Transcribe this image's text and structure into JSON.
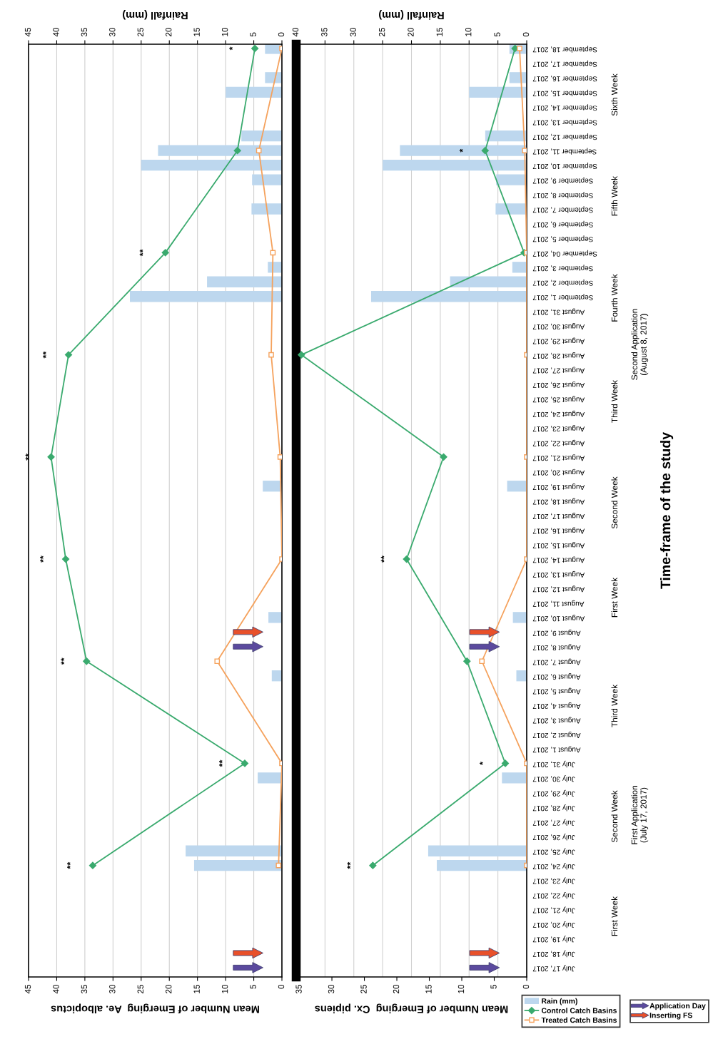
{
  "chart_data": [
    {
      "type": "line",
      "orientation": "horizontal",
      "xlabel": "Mean Number of Emerging  Ae. albopictus",
      "x2label": "Rainfall (mm)",
      "tick_labels": "x",
      "grid": "x",
      "categories": [
        "September 18, 2017",
        "September 17, 2017",
        "September 16, 2017",
        "September 15, 2017",
        "September 14, 2017",
        "September 13, 2017",
        "September 12, 2017",
        "September 11, 2017",
        "September 10, 2017",
        "September 9, 2017",
        "September 8, 2017",
        "September 7, 2017",
        "September 6, 2017",
        "September 5, 2017",
        "September 04, 2017",
        "September 3, 2017",
        "September 2, 2017",
        "September 1, 2017",
        "August 31, 2017",
        "August 30, 2017",
        "August 29, 2017",
        "August 28, 2017",
        "August 27, 2017",
        "August 26, 2017",
        "August 25, 2017",
        "August 24, 2017",
        "August 23, 2017",
        "August 22, 2017",
        "August 21, 2017",
        "August 20, 2017",
        "August 19, 2017",
        "August 18, 2017",
        "August 17, 2017",
        "August 16, 2017",
        "August 15, 2017",
        "August 14, 2017",
        "August 13, 2017",
        "August 12, 2017",
        "August 11, 2017",
        "August 10, 2017",
        "August 9, 2017",
        "August 8, 2017",
        "August 7, 2017",
        "August 6, 2017",
        "August 5, 2017",
        "August 4, 2017",
        "August 3, 2017",
        "August 2, 2017",
        "August 1, 2017",
        "July 31, 2017",
        "July 30, 2017",
        "July 29, 2017",
        "July 28, 2017",
        "July 27, 2017",
        "July 26, 2017",
        "July 25, 2017",
        "July 24, 2017",
        "July 23, 2017",
        "July 22, 2017",
        "July 21, 2017",
        "July 20, 2017",
        "July 19, 2017",
        "July 18, 2017",
        "July 17, 2017"
      ],
      "xlim": [
        45,
        0
      ],
      "xticks": [
        0,
        5,
        10,
        15,
        20,
        25,
        30,
        35,
        40,
        45
      ],
      "x2lim": [
        45,
        0
      ],
      "x2ticks": [
        0,
        5,
        10,
        15,
        20,
        25,
        30,
        35,
        40,
        45
      ],
      "series": [
        {
          "type": "bar",
          "axis": "x2",
          "color": "#bdd7ee",
          "values": [
            3,
            0,
            3,
            10,
            0,
            0,
            7.2,
            22,
            25,
            5.3,
            0,
            5.4,
            0,
            0,
            0,
            2.5,
            13.3,
            27,
            0,
            0,
            0,
            0,
            0,
            0,
            0,
            0,
            0,
            0,
            0,
            0,
            3.4,
            0,
            0,
            0,
            0,
            0,
            0,
            0,
            0,
            2.4,
            0,
            0,
            0,
            1.8,
            0,
            0,
            0,
            0,
            0,
            0,
            4.3,
            0,
            0,
            0,
            0,
            17.1,
            15.6,
            0,
            0,
            0,
            0,
            0,
            0,
            0
          ]
        },
        {
          "color": "#3aaa6e",
          "marker": "diamond",
          "values": [
            4.8,
            null,
            null,
            null,
            null,
            null,
            null,
            7.9,
            null,
            null,
            null,
            null,
            null,
            null,
            20.7,
            null,
            null,
            null,
            null,
            null,
            null,
            37.9,
            null,
            null,
            null,
            null,
            null,
            null,
            41,
            null,
            null,
            null,
            null,
            null,
            null,
            38.4,
            null,
            null,
            null,
            null,
            null,
            null,
            34.7,
            null,
            null,
            null,
            null,
            null,
            null,
            6.6,
            null,
            null,
            null,
            null,
            null,
            null,
            33.6,
            null,
            null,
            null,
            null,
            null,
            null,
            null
          ]
        },
        {
          "color": "#f5a25d",
          "marker": "square",
          "values": [
            0,
            null,
            null,
            null,
            null,
            null,
            null,
            4.1,
            null,
            null,
            null,
            null,
            null,
            null,
            1.6,
            null,
            null,
            null,
            null,
            null,
            null,
            1.9,
            null,
            null,
            null,
            null,
            null,
            null,
            0.3,
            null,
            null,
            null,
            null,
            null,
            null,
            0,
            null,
            null,
            null,
            null,
            null,
            null,
            11.5,
            null,
            null,
            null,
            null,
            null,
            null,
            0,
            null,
            null,
            null,
            null,
            null,
            null,
            0.6,
            null,
            null,
            null,
            null,
            null,
            null,
            null
          ]
        },
        {
          "type": "scatter",
          "color": "#5b4a9e",
          "marker": "triangle",
          "values": [
            null,
            null,
            null,
            null,
            null,
            null,
            null,
            null,
            null,
            null,
            null,
            null,
            null,
            null,
            null,
            null,
            null,
            null,
            null,
            null,
            null,
            null,
            null,
            null,
            null,
            null,
            null,
            null,
            null,
            null,
            null,
            null,
            null,
            null,
            null,
            null,
            null,
            null,
            null,
            null,
            null,
            6,
            null,
            null,
            null,
            null,
            null,
            null,
            null,
            null,
            null,
            null,
            null,
            null,
            null,
            null,
            null,
            null,
            null,
            null,
            null,
            null,
            null,
            6
          ]
        },
        {
          "type": "scatter",
          "color": "#e8502a",
          "marker": "triangle",
          "values": [
            null,
            null,
            null,
            null,
            null,
            null,
            null,
            null,
            null,
            null,
            null,
            null,
            null,
            null,
            null,
            null,
            null,
            null,
            null,
            null,
            null,
            null,
            null,
            null,
            null,
            null,
            null,
            null,
            null,
            null,
            null,
            null,
            null,
            null,
            null,
            null,
            null,
            null,
            null,
            null,
            6,
            null,
            null,
            null,
            null,
            null,
            null,
            null,
            null,
            null,
            null,
            null,
            null,
            null,
            null,
            null,
            null,
            null,
            null,
            null,
            null,
            null,
            6,
            null
          ]
        }
      ],
      "annotations": [
        {
          "text": "**",
          "y": "July 24, 2017",
          "x": 33.6
        },
        {
          "text": "**",
          "y": "July 31, 2017",
          "x": 6.6
        },
        {
          "text": "**",
          "y": "August 7, 2017",
          "x": 34.7
        },
        {
          "text": "**",
          "y": "August 14, 2017",
          "x": 38.4
        },
        {
          "text": "**",
          "y": "August 21, 2017",
          "x": 41
        },
        {
          "text": "**",
          "y": "August 28, 2017",
          "x": 37.9
        },
        {
          "text": "**",
          "y": "September 04, 2017",
          "x": 20.7
        },
        {
          "text": "*",
          "y": "September 18, 2017",
          "x": 4.8
        }
      ]
    },
    {
      "type": "line",
      "orientation": "horizontal",
      "xlabel": "Mean Number of Emerging  Cx. pipiens",
      "x2label": "Rainfall (mm)",
      "ylabel": "Time-frame of the study",
      "grid": "x",
      "legend": "right",
      "categories": [
        "September 18, 2017",
        "September 17, 2017",
        "September 16, 2017",
        "September 15, 2017",
        "September 14, 2017",
        "September 13, 2017",
        "September 12, 2017",
        "September 11, 2017",
        "September 10, 2017",
        "September 9, 2017",
        "September 8, 2017",
        "September 7, 2017",
        "September 6, 2017",
        "September 5, 2017",
        "September 04, 2017",
        "September 3, 2017",
        "September 2, 2017",
        "September 1, 2017",
        "August 31, 2017",
        "August 30, 2017",
        "August 29, 2017",
        "August 28, 2017",
        "August 27, 2017",
        "August 26, 2017",
        "August 25, 2017",
        "August 24, 2017",
        "August 23, 2017",
        "August 22, 2017",
        "August 21, 2017",
        "August 20, 2017",
        "August 19, 2017",
        "August 18, 2017",
        "August 17, 2017",
        "August 16, 2017",
        "August 15, 2017",
        "August 14, 2017",
        "August 13, 2017",
        "August 12, 2017",
        "August 11, 2017",
        "August 10, 2017",
        "August 9, 2017",
        "August 8, 2017",
        "August 7, 2017",
        "August 6, 2017",
        "August 5, 2017",
        "August 4, 2017",
        "August 3, 2017",
        "August 2, 2017",
        "August 1, 2017",
        "July 31, 2017",
        "July 30, 2017",
        "July 29, 2017",
        "July 28, 2017",
        "July 27, 2017",
        "July 26, 2017",
        "July 25, 2017",
        "July 24, 2017",
        "July 23, 2017",
        "July 22, 2017",
        "July 21, 2017",
        "July 20, 2017",
        "July 19, 2017",
        "July 18, 2017",
        "July 17, 2017"
      ],
      "xlim": [
        35.5,
        0
      ],
      "xticks": [
        0,
        5,
        10,
        15,
        20,
        25,
        30,
        35
      ],
      "x2lim": [
        40,
        0
      ],
      "x2ticks": [
        0,
        5,
        10,
        15,
        20,
        25,
        30,
        35,
        40
      ],
      "series": [
        {
          "type": "bar",
          "axis": "x2",
          "name": "Rain (mm)",
          "color": "#bdd7ee",
          "values": [
            3,
            0,
            3,
            10,
            0,
            0,
            7.2,
            22,
            25,
            5.3,
            0,
            5.4,
            0,
            0,
            0,
            2.5,
            13.3,
            27,
            0,
            0,
            0,
            0,
            0,
            0,
            0,
            0,
            0,
            0,
            0,
            0,
            3.4,
            0,
            0,
            0,
            0,
            0,
            0,
            0,
            0,
            2.4,
            0,
            0,
            0,
            1.8,
            0,
            0,
            0,
            0,
            0,
            0,
            4.3,
            0,
            0,
            0,
            0,
            17.1,
            15.6,
            0,
            0,
            0,
            0,
            0,
            0,
            0
          ]
        },
        {
          "name": "Control Catch Basins",
          "color": "#3aaa6e",
          "marker": "diamond",
          "values": [
            1.8,
            null,
            null,
            null,
            null,
            null,
            null,
            6.4,
            null,
            null,
            null,
            null,
            null,
            null,
            0.4,
            null,
            null,
            null,
            null,
            null,
            null,
            34.7,
            null,
            null,
            null,
            null,
            null,
            null,
            12.8,
            null,
            null,
            null,
            null,
            null,
            null,
            18.5,
            null,
            null,
            null,
            null,
            null,
            null,
            9.2,
            null,
            null,
            null,
            null,
            null,
            null,
            3.3,
            null,
            null,
            null,
            null,
            null,
            null,
            23.7,
            null,
            null,
            null,
            null,
            null,
            null,
            null
          ]
        },
        {
          "name": "Treated Catch Basins",
          "color": "#f5a25d",
          "marker": "square",
          "values": [
            1.1,
            null,
            null,
            null,
            null,
            null,
            null,
            0.3,
            null,
            null,
            null,
            null,
            null,
            null,
            0,
            null,
            null,
            null,
            null,
            null,
            null,
            0,
            null,
            null,
            null,
            null,
            null,
            null,
            0,
            null,
            null,
            null,
            null,
            null,
            null,
            0,
            null,
            null,
            null,
            null,
            null,
            null,
            6.9,
            null,
            null,
            null,
            null,
            null,
            null,
            0,
            null,
            null,
            null,
            null,
            null,
            null,
            0,
            null,
            null,
            null,
            null,
            null,
            null,
            null
          ]
        },
        {
          "type": "scatter",
          "name": "Application Day",
          "color": "#5b4a9e",
          "marker": "triangle",
          "values": [
            null,
            null,
            null,
            null,
            null,
            null,
            null,
            null,
            null,
            null,
            null,
            null,
            null,
            null,
            null,
            null,
            null,
            null,
            null,
            null,
            null,
            null,
            null,
            null,
            null,
            null,
            null,
            null,
            null,
            null,
            null,
            null,
            null,
            null,
            null,
            null,
            null,
            null,
            null,
            null,
            null,
            6.5,
            null,
            null,
            null,
            null,
            null,
            null,
            null,
            null,
            null,
            null,
            null,
            null,
            null,
            null,
            null,
            null,
            null,
            null,
            null,
            null,
            null,
            6.5
          ]
        },
        {
          "type": "scatter",
          "name": "Inserting FS",
          "color": "#e8502a",
          "marker": "triangle",
          "values": [
            null,
            null,
            null,
            null,
            null,
            null,
            null,
            null,
            null,
            null,
            null,
            null,
            null,
            null,
            null,
            null,
            null,
            null,
            null,
            null,
            null,
            null,
            null,
            null,
            null,
            null,
            null,
            null,
            null,
            null,
            null,
            null,
            null,
            null,
            null,
            null,
            null,
            null,
            null,
            null,
            6.5,
            null,
            null,
            null,
            null,
            null,
            null,
            null,
            null,
            null,
            null,
            null,
            null,
            null,
            null,
            null,
            null,
            null,
            null,
            null,
            null,
            null,
            6.5,
            null
          ]
        }
      ],
      "annotations": [
        {
          "text": "**",
          "y": "July 24, 2017",
          "x": 23.7
        },
        {
          "text": "*",
          "y": "July 31, 2017",
          "x": 3.3
        },
        {
          "text": "**",
          "y": "August 14, 2017",
          "x": 18.5
        },
        {
          "text": "*",
          "y": "September 11, 2017",
          "x": 6.4
        },
        "First Week",
        "Second Week",
        "Third Week",
        "First Week",
        "Second Week",
        "Third Week",
        "Fourth Week",
        "Fifth Week",
        "Sixth Week",
        "First Application\n(July 17, 2017)",
        "Second Application\n(August 8, 2017)"
      ]
    }
  ]
}
